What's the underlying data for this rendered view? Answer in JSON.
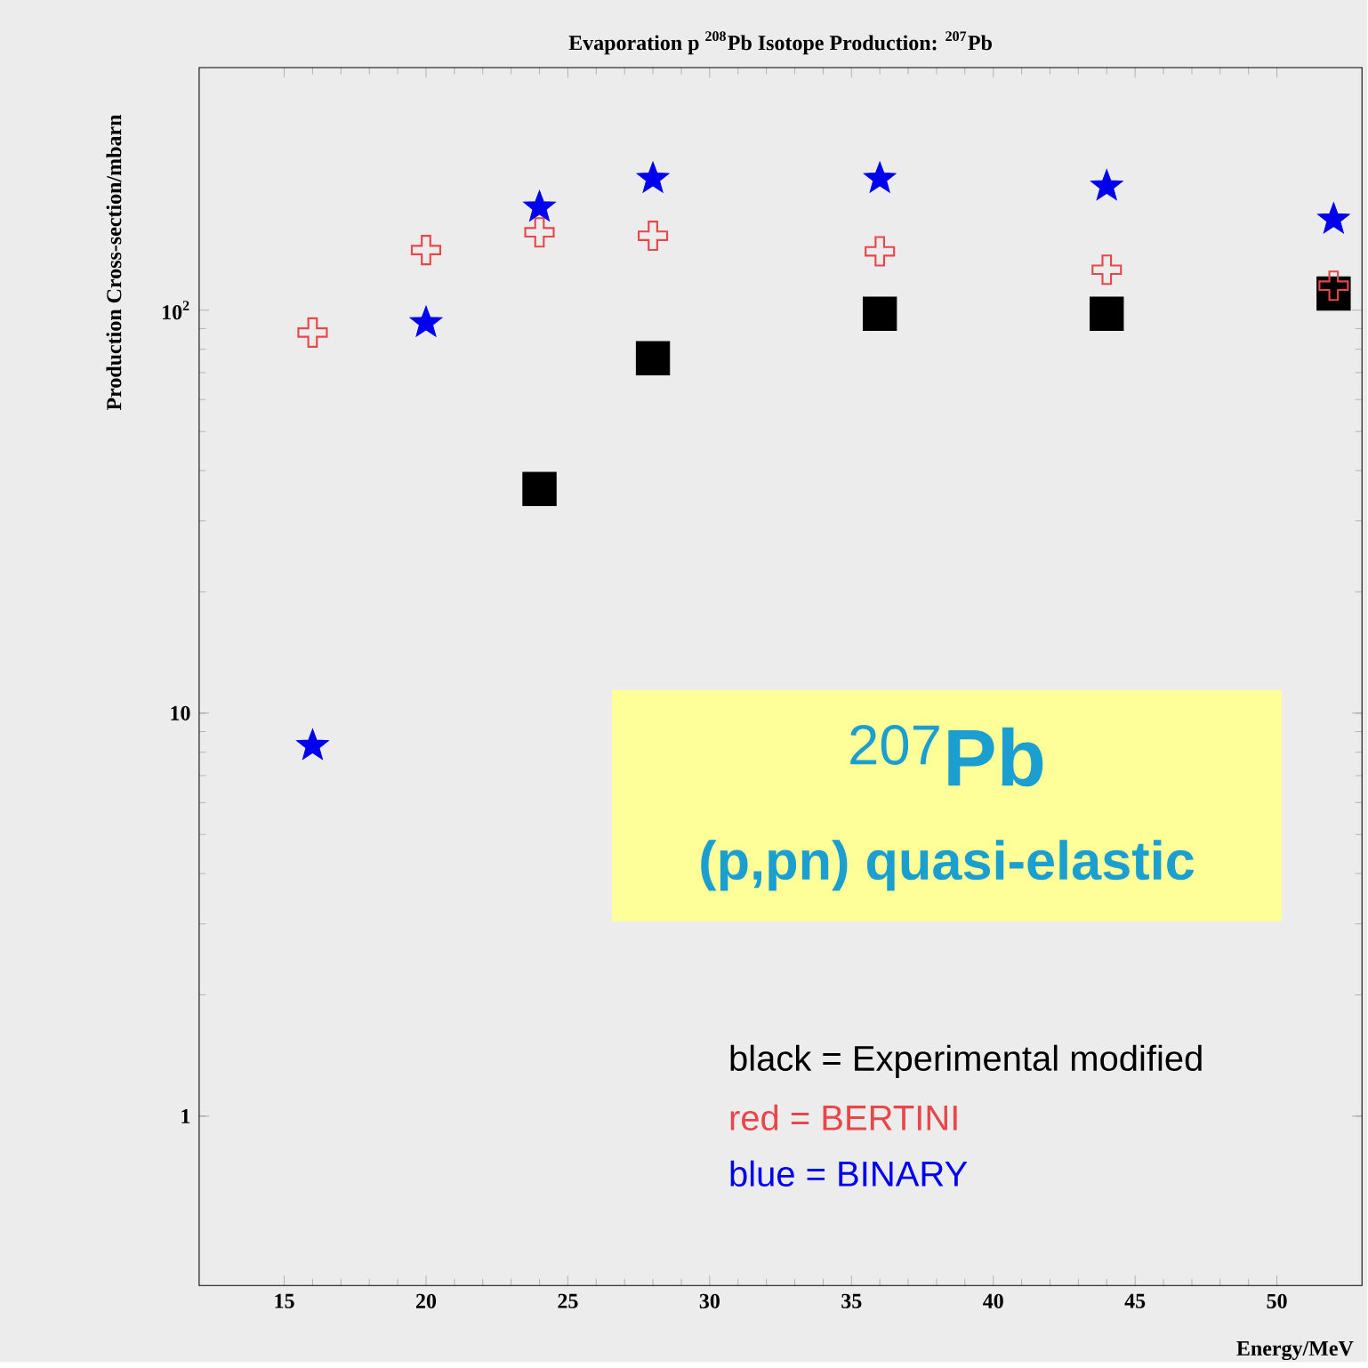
{
  "chart_data": {
    "type": "scatter",
    "title": "Evaporation p $^{208}$Pb Isotope Production: $^{207}$Pb",
    "xlabel": "Energy/MeV",
    "ylabel": "Production Cross-section/mbarn",
    "annotations": [
      "$^{207}$**Pb**",
      "(p,pn) quasi-elastic"
    ],
    "log": "y",
    "xlim": [
      12,
      53
    ],
    "ylim": [
      0.38,
      400
    ],
    "xticks": [
      15,
      20,
      25,
      30,
      35,
      40,
      45,
      50
    ],
    "yticks": [
      1,
      10,
      {
        "value": 100,
        "label": "10$^{2}$"
      }
    ],
    "legend": "bottom right",
    "series": [
      {
        "name": "black = Experimental modified",
        "color": "#000000",
        "marker": "square",
        "x": [
          24,
          28,
          36,
          44,
          52
        ],
        "values": [
          36,
          76,
          98,
          98,
          110
        ]
      },
      {
        "name": "red = BERTINI",
        "color": "#e8474a",
        "marker": "cross",
        "x": [
          16,
          20,
          24,
          28,
          36,
          44,
          52
        ],
        "values": [
          88,
          141,
          156,
          153,
          140,
          126,
          115
        ]
      },
      {
        "name": "blue = BINARY",
        "color": "#0000ee",
        "marker": "star",
        "x": [
          16,
          20,
          24,
          28,
          36,
          44,
          52
        ],
        "values": [
          8.3,
          93,
          180,
          212,
          212,
          203,
          168
        ]
      }
    ]
  }
}
